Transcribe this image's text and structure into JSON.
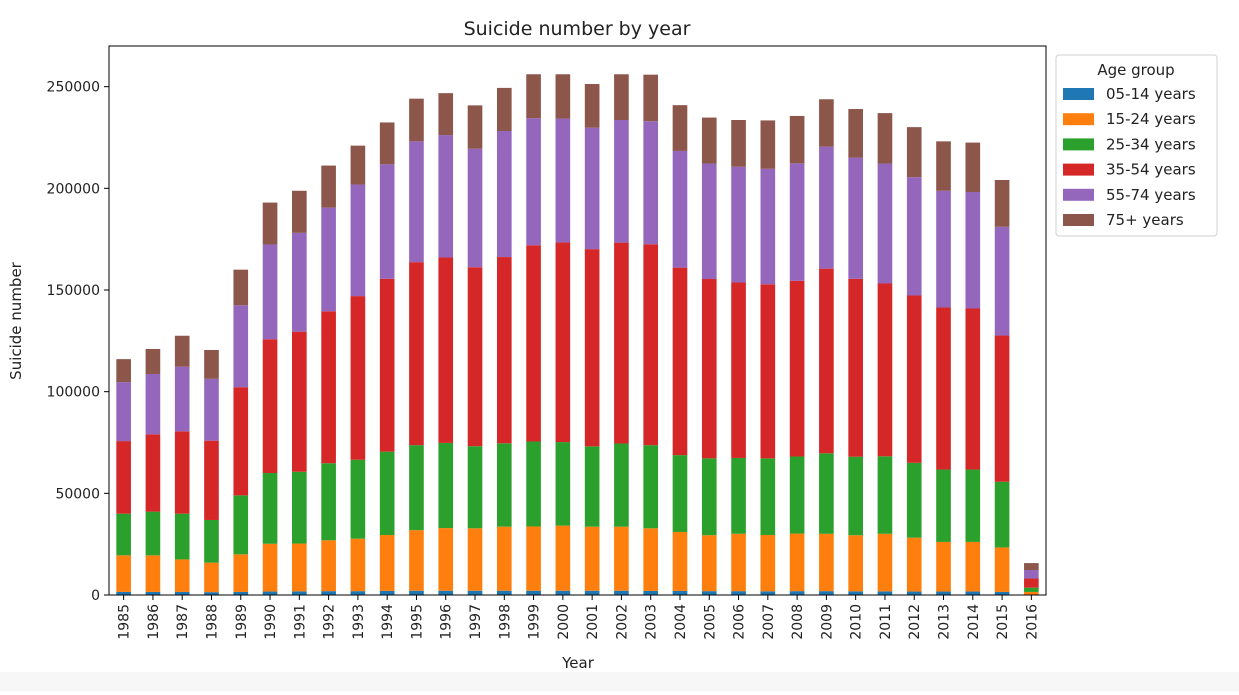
{
  "chart_data": {
    "type": "bar",
    "stacked": true,
    "title": "Suicide number by year",
    "xlabel": "Year",
    "ylabel": "Suicide number",
    "ylim": [
      0,
      270000
    ],
    "yticks": [
      0,
      50000,
      100000,
      150000,
      200000,
      250000
    ],
    "grid": false,
    "legend": {
      "title": "Age group",
      "placement": "outside-top-right"
    },
    "categories": [
      "1985",
      "1986",
      "1987",
      "1988",
      "1989",
      "1990",
      "1991",
      "1992",
      "1993",
      "1994",
      "1995",
      "1996",
      "1997",
      "1998",
      "1999",
      "2000",
      "2001",
      "2002",
      "2003",
      "2004",
      "2005",
      "2006",
      "2007",
      "2008",
      "2009",
      "2010",
      "2011",
      "2012",
      "2013",
      "2014",
      "2015",
      "2016"
    ],
    "series": [
      {
        "name": "05-14 years",
        "color": "#1f77b4",
        "values": [
          1500,
          1500,
          1500,
          1400,
          1500,
          1700,
          1800,
          1900,
          1900,
          2000,
          2100,
          2100,
          2100,
          2100,
          2100,
          2100,
          2100,
          2100,
          2000,
          2000,
          1900,
          1900,
          1800,
          1900,
          1900,
          1800,
          1800,
          1700,
          1700,
          1700,
          1500,
          200
        ]
      },
      {
        "name": "15-24 years",
        "color": "#ff7f0e",
        "values": [
          18000,
          18000,
          16000,
          14500,
          18500,
          23500,
          23500,
          25000,
          25800,
          27500,
          29800,
          30800,
          30700,
          31500,
          31600,
          32000,
          31500,
          31500,
          30800,
          29000,
          27500,
          28200,
          27700,
          28300,
          28200,
          27600,
          28300,
          26500,
          24400,
          24400,
          21900,
          1300
        ]
      },
      {
        "name": "25-34 years",
        "color": "#2ca02c",
        "values": [
          20500,
          21500,
          22500,
          21000,
          29000,
          34800,
          35300,
          37900,
          38800,
          41000,
          41800,
          41900,
          40400,
          41000,
          41800,
          41100,
          39500,
          40900,
          40900,
          37800,
          37800,
          37300,
          37700,
          37900,
          39600,
          38600,
          38100,
          36800,
          35600,
          35600,
          32300,
          2100
        ]
      },
      {
        "name": "35-54 years",
        "color": "#d62728",
        "values": [
          35700,
          38000,
          40500,
          39000,
          53200,
          65800,
          68900,
          74700,
          80500,
          85000,
          90000,
          91200,
          88000,
          91600,
          96500,
          98200,
          97000,
          98800,
          98800,
          92200,
          88200,
          86300,
          85600,
          86400,
          90800,
          87500,
          85000,
          82300,
          79700,
          79200,
          71900,
          4500
        ]
      },
      {
        "name": "55-74 years",
        "color": "#9467bd",
        "values": [
          29000,
          29700,
          31800,
          30400,
          40300,
          46600,
          48600,
          51000,
          54900,
          56300,
          59400,
          60200,
          58300,
          62000,
          62500,
          60900,
          59700,
          60300,
          60500,
          57400,
          56800,
          56900,
          56800,
          57800,
          60000,
          59600,
          59000,
          58200,
          57400,
          57300,
          53500,
          4200
        ]
      },
      {
        "name": "75+ years",
        "color": "#8c564b",
        "values": [
          11300,
          12300,
          15200,
          14200,
          17500,
          20600,
          20700,
          20700,
          19100,
          20600,
          21000,
          20600,
          21300,
          21200,
          21600,
          21800,
          21500,
          22500,
          22900,
          22500,
          22600,
          23000,
          23800,
          23300,
          23300,
          23900,
          24800,
          24600,
          24300,
          24300,
          23000,
          3400
        ]
      }
    ]
  }
}
